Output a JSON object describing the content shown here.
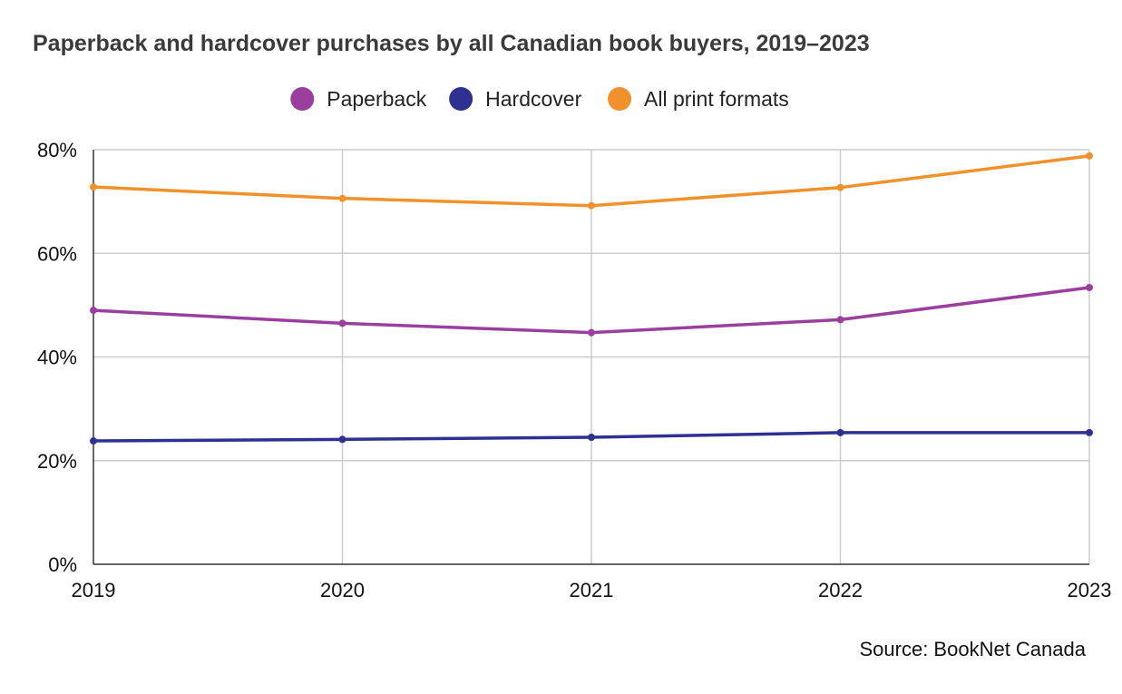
{
  "chart_data": {
    "type": "line",
    "title": "Paperback and hardcover purchases by all Canadian book buyers, 2019–2023",
    "xlabel": "",
    "ylabel": "",
    "categories": [
      "2019",
      "2020",
      "2021",
      "2022",
      "2023"
    ],
    "ylim": [
      0,
      80
    ],
    "yticks": [
      0,
      20,
      40,
      60,
      80
    ],
    "ytick_labels": [
      "0%",
      "20%",
      "40%",
      "60%",
      "80%"
    ],
    "grid": true,
    "legend_position": "top-center",
    "series": [
      {
        "name": "Paperback",
        "color": "#9b3f9f",
        "values": [
          49,
          46.5,
          44.7,
          47.2,
          53.4
        ]
      },
      {
        "name": "Hardcover",
        "color": "#2e3192",
        "values": [
          23.8,
          24.1,
          24.5,
          25.4,
          25.4
        ]
      },
      {
        "name": "All print formats",
        "color": "#f0912b",
        "values": [
          72.8,
          70.6,
          69.2,
          72.7,
          78.8
        ]
      }
    ],
    "source": "Source: BookNet Canada"
  }
}
